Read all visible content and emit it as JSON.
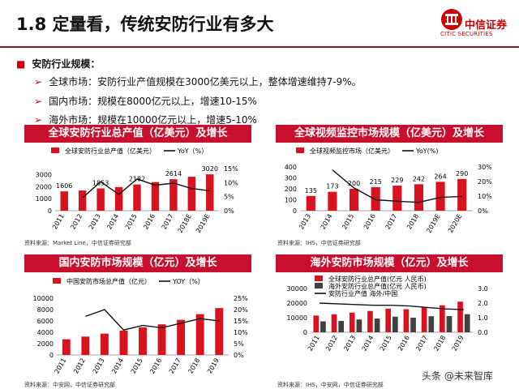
{
  "title": "1.8 定量看，传统安防行业有多大",
  "logo": {
    "cn": "中信证券",
    "en": "CITIC SECURITIES"
  },
  "bullets": {
    "head": "安防行业规模：",
    "items": [
      "全球市场：安防行业产值规模在3000亿美元以上，整体增速维持7-9%。",
      "国内市场：规模在8000亿元以上，增速10-15%",
      "海外市场：规模在10000亿元以上，增速5-10%"
    ]
  },
  "panels": {
    "p1": {
      "head": "全球安防行业总产值（亿美元）及增长",
      "source": "资料来源：Market Line，中信证券研究部"
    },
    "p2": {
      "head": "全球视频监控市场规模（亿美元）及增长",
      "source": "资料来源：IHS，中信证券研究部"
    },
    "p3": {
      "head": "国内安防市场规模（亿元）及增长",
      "source": "资料来源：中安网，中信证券研究部"
    },
    "p4": {
      "head": "海外安防市场规模（亿元）及增长",
      "source": "资料来源：IHS，中安网，中信证券研究部"
    }
  },
  "watermark": "头条 @未来智库",
  "colors": {
    "bar": "#d9121f",
    "bar2": "#404040",
    "line": "#111111",
    "head": "#c8102e"
  },
  "chart_data": [
    {
      "type": "bar",
      "categories": [
        "2011",
        "2012",
        "2013",
        "2014",
        "2015",
        "2016",
        "2017",
        "2018E",
        "2019E"
      ],
      "series": [
        {
          "name": "全球安防行业总产值（亿美元）",
          "values": [
            1606,
            1680,
            1853,
            1960,
            2182,
            2380,
            2614,
            2820,
            3020
          ]
        },
        {
          "name": "YoY（%）",
          "axis": "right",
          "values": [
            null,
            4.6,
            10.3,
            5.8,
            11.3,
            9.1,
            9.8,
            7.9,
            7.1
          ]
        }
      ],
      "ylim": [
        0,
        3500
      ],
      "y2lim": [
        0,
        15
      ],
      "yticks": [
        0,
        1000,
        2000,
        3000
      ],
      "y2ticks": [
        "0%",
        "5%",
        "10%",
        "15%"
      ],
      "data_labels": {
        "0": "1606",
        "2": "1853",
        "4": "2182",
        "6": "2614",
        "8": "3020"
      }
    },
    {
      "type": "bar",
      "categories": [
        "2013",
        "2014",
        "2015",
        "2016",
        "2017",
        "2018",
        "2019E",
        "2020E"
      ],
      "series": [
        {
          "name": "全球视频监控市场（亿美元）",
          "values": [
            135,
            173,
            200,
            215,
            229,
            242,
            264,
            290
          ]
        },
        {
          "name": "YoY(%)",
          "axis": "right",
          "values": [
            null,
            28,
            15.6,
            7.5,
            6.5,
            5.7,
            9.1,
            9.8
          ]
        }
      ],
      "ylim": [
        0,
        400
      ],
      "y2lim": [
        0,
        30
      ],
      "yticks": [
        0,
        100,
        200,
        300,
        400
      ],
      "y2ticks": [
        "0%",
        "10%",
        "20%",
        "30%"
      ],
      "data_labels": {
        "0": "135",
        "1": "173",
        "2": "200",
        "3": "215",
        "4": "229",
        "5": "242",
        "6": "264",
        "7": "290"
      }
    },
    {
      "type": "bar",
      "categories": [
        "2011",
        "2012",
        "2013",
        "2014",
        "2015",
        "2016",
        "2017",
        "2018",
        "2019"
      ],
      "series": [
        {
          "name": "中国安防市场总产值（亿元）",
          "values": [
            2770,
            3240,
            3760,
            4300,
            4860,
            5400,
            6200,
            7200,
            8260
          ]
        },
        {
          "name": "YOY（%）",
          "axis": "right",
          "values": [
            null,
            17,
            20,
            11,
            13,
            12,
            14,
            16,
            15
          ]
        }
      ],
      "ylim": [
        0,
        10000
      ],
      "y2lim": [
        0,
        25
      ],
      "yticks": [
        0,
        2000,
        4000,
        6000,
        8000,
        10000
      ],
      "y2ticks": [
        "0%",
        "5%",
        "10%",
        "15%",
        "20%",
        "25%"
      ]
    },
    {
      "type": "bar",
      "categories": [
        "2011",
        "2012",
        "2013",
        "2014",
        "2015",
        "2016",
        "2017",
        "2018",
        "2019"
      ],
      "series": [
        {
          "name": "全球安防行业总产值(亿元 人民币)",
          "values": [
            11500,
            12300,
            13500,
            14600,
            16200,
            15800,
            17300,
            18500,
            21000
          ]
        },
        {
          "name": "海外安防行业总产值(亿元 人民币)",
          "values": [
            7500,
            7800,
            8800,
            9400,
            10700,
            10000,
            11000,
            11100,
            12400
          ]
        },
        {
          "name": "安防行业产值 海外/中国",
          "axis": "right",
          "values": [
            2.0,
            1.95,
            1.9,
            1.85,
            1.85,
            1.8,
            1.7,
            1.6,
            1.55
          ]
        }
      ],
      "ylim": [
        0,
        30000
      ],
      "y2lim": [
        0,
        3.0
      ],
      "yticks": [
        0,
        10000,
        20000,
        30000
      ],
      "y2ticks": [
        "0.0",
        "1.0",
        "2.0",
        "3.0"
      ]
    }
  ]
}
